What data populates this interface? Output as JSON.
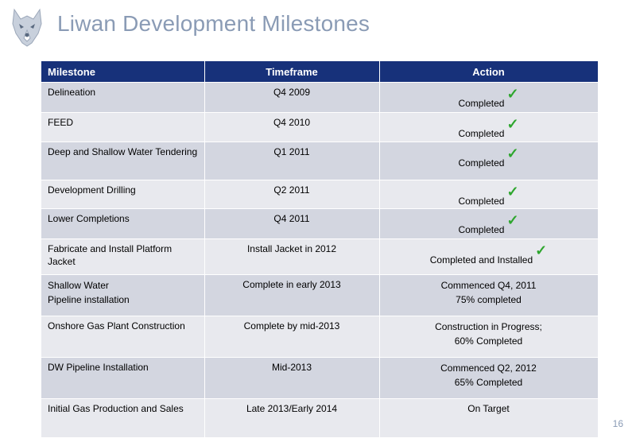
{
  "header": {
    "title": "Liwan Development Milestones"
  },
  "table": {
    "columns": [
      "Milestone",
      "Timeframe",
      "Action"
    ],
    "rows": [
      {
        "milestone": "Delineation",
        "timeframe": "Q4 2009",
        "action": [
          "Completed"
        ],
        "check": true
      },
      {
        "milestone": "FEED",
        "timeframe": "Q4 2010",
        "action": [
          "Completed"
        ],
        "check": true
      },
      {
        "milestone": "Deep and Shallow Water Tendering",
        "timeframe": "Q1 2011",
        "action": [
          "Completed"
        ],
        "check": true
      },
      {
        "milestone": "Development Drilling",
        "timeframe": "Q2 2011",
        "action": [
          "Completed"
        ],
        "check": true
      },
      {
        "milestone": "Lower Completions",
        "timeframe": "Q4 2011",
        "action": [
          "Completed"
        ],
        "check": true
      },
      {
        "milestone": "Fabricate and Install Platform Jacket",
        "timeframe": "Install Jacket in 2012",
        "action": [
          "Completed and Installed"
        ],
        "check": true
      },
      {
        "milestone": [
          "Shallow Water",
          "Pipeline installation"
        ],
        "timeframe": "Complete in early 2013",
        "action": [
          "Commenced Q4, 2011",
          "75% completed"
        ],
        "check": false
      },
      {
        "milestone": "Onshore Gas Plant Construction",
        "timeframe": "Complete by mid-2013",
        "action": [
          "Construction in Progress;",
          "60% Completed"
        ],
        "check": false
      },
      {
        "milestone": "DW Pipeline Installation",
        "timeframe": "Mid-2013",
        "action": [
          "Commenced Q2, 2012",
          "65% Completed"
        ],
        "check": false
      },
      {
        "milestone": "Initial Gas Production and Sales",
        "timeframe": "Late 2013/Early 2014",
        "action": [
          "On Target"
        ],
        "check": false
      }
    ]
  },
  "footer": {
    "page_number": "16"
  },
  "colors": {
    "header_bg": "#17317a",
    "row_odd": "#d3d6e0",
    "row_even": "#e8e9ee",
    "title": "#8a9bb5",
    "check": "#2ea62e"
  },
  "icons": {
    "logo": "husky-dog-logo",
    "check": "checkmark-icon"
  }
}
